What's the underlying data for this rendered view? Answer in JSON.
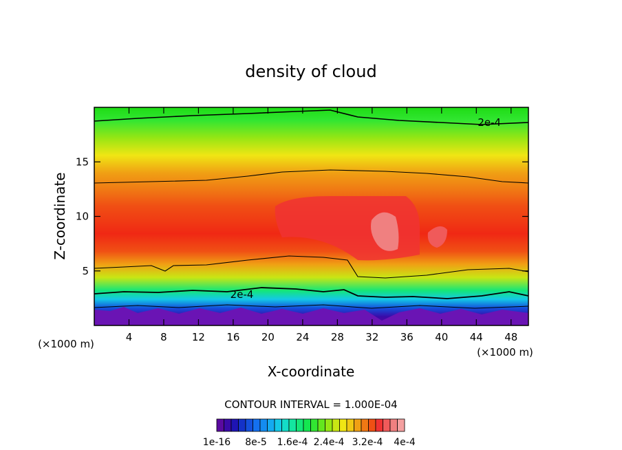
{
  "chart_data": {
    "type": "heatmap",
    "title": "density of cloud",
    "xlabel": "X-coordinate",
    "ylabel": "Z-coordinate",
    "x_unit_label": "(×1000 m)",
    "xlim": [
      0,
      50
    ],
    "ylim": [
      0,
      20
    ],
    "x_ticks": [
      4,
      8,
      12,
      16,
      20,
      24,
      28,
      32,
      36,
      40,
      44,
      48
    ],
    "y_ticks": [
      5,
      10,
      15
    ],
    "contour_labels": [
      {
        "text": "2e-4",
        "x": 45.5,
        "z": 18.6
      },
      {
        "text": "2e-4",
        "x": 17,
        "z": 2.85
      }
    ],
    "contour_interval_label": "CONTOUR INTERVAL = 1.000E-04",
    "colorbar": {
      "min": 1e-16,
      "max": 0.0004,
      "tick_labels": [
        "1e-16",
        "8e-5",
        "1.6e-4",
        "2.4e-4",
        "3.2e-4",
        "4e-4"
      ],
      "colors": [
        "#5a0aa0",
        "#3a0aa8",
        "#1e14b4",
        "#1432c8",
        "#1450dc",
        "#1470f0",
        "#148cf0",
        "#14aaf0",
        "#14c8e6",
        "#14dcc8",
        "#14e6a0",
        "#14e678",
        "#14e650",
        "#32e632",
        "#64e61e",
        "#96e614",
        "#c8e614",
        "#f0e614",
        "#f0c814",
        "#f0a014",
        "#f07814",
        "#f05014",
        "#f03232",
        "#f05a5a",
        "#f08080",
        "#f4a0a0"
      ]
    }
  }
}
